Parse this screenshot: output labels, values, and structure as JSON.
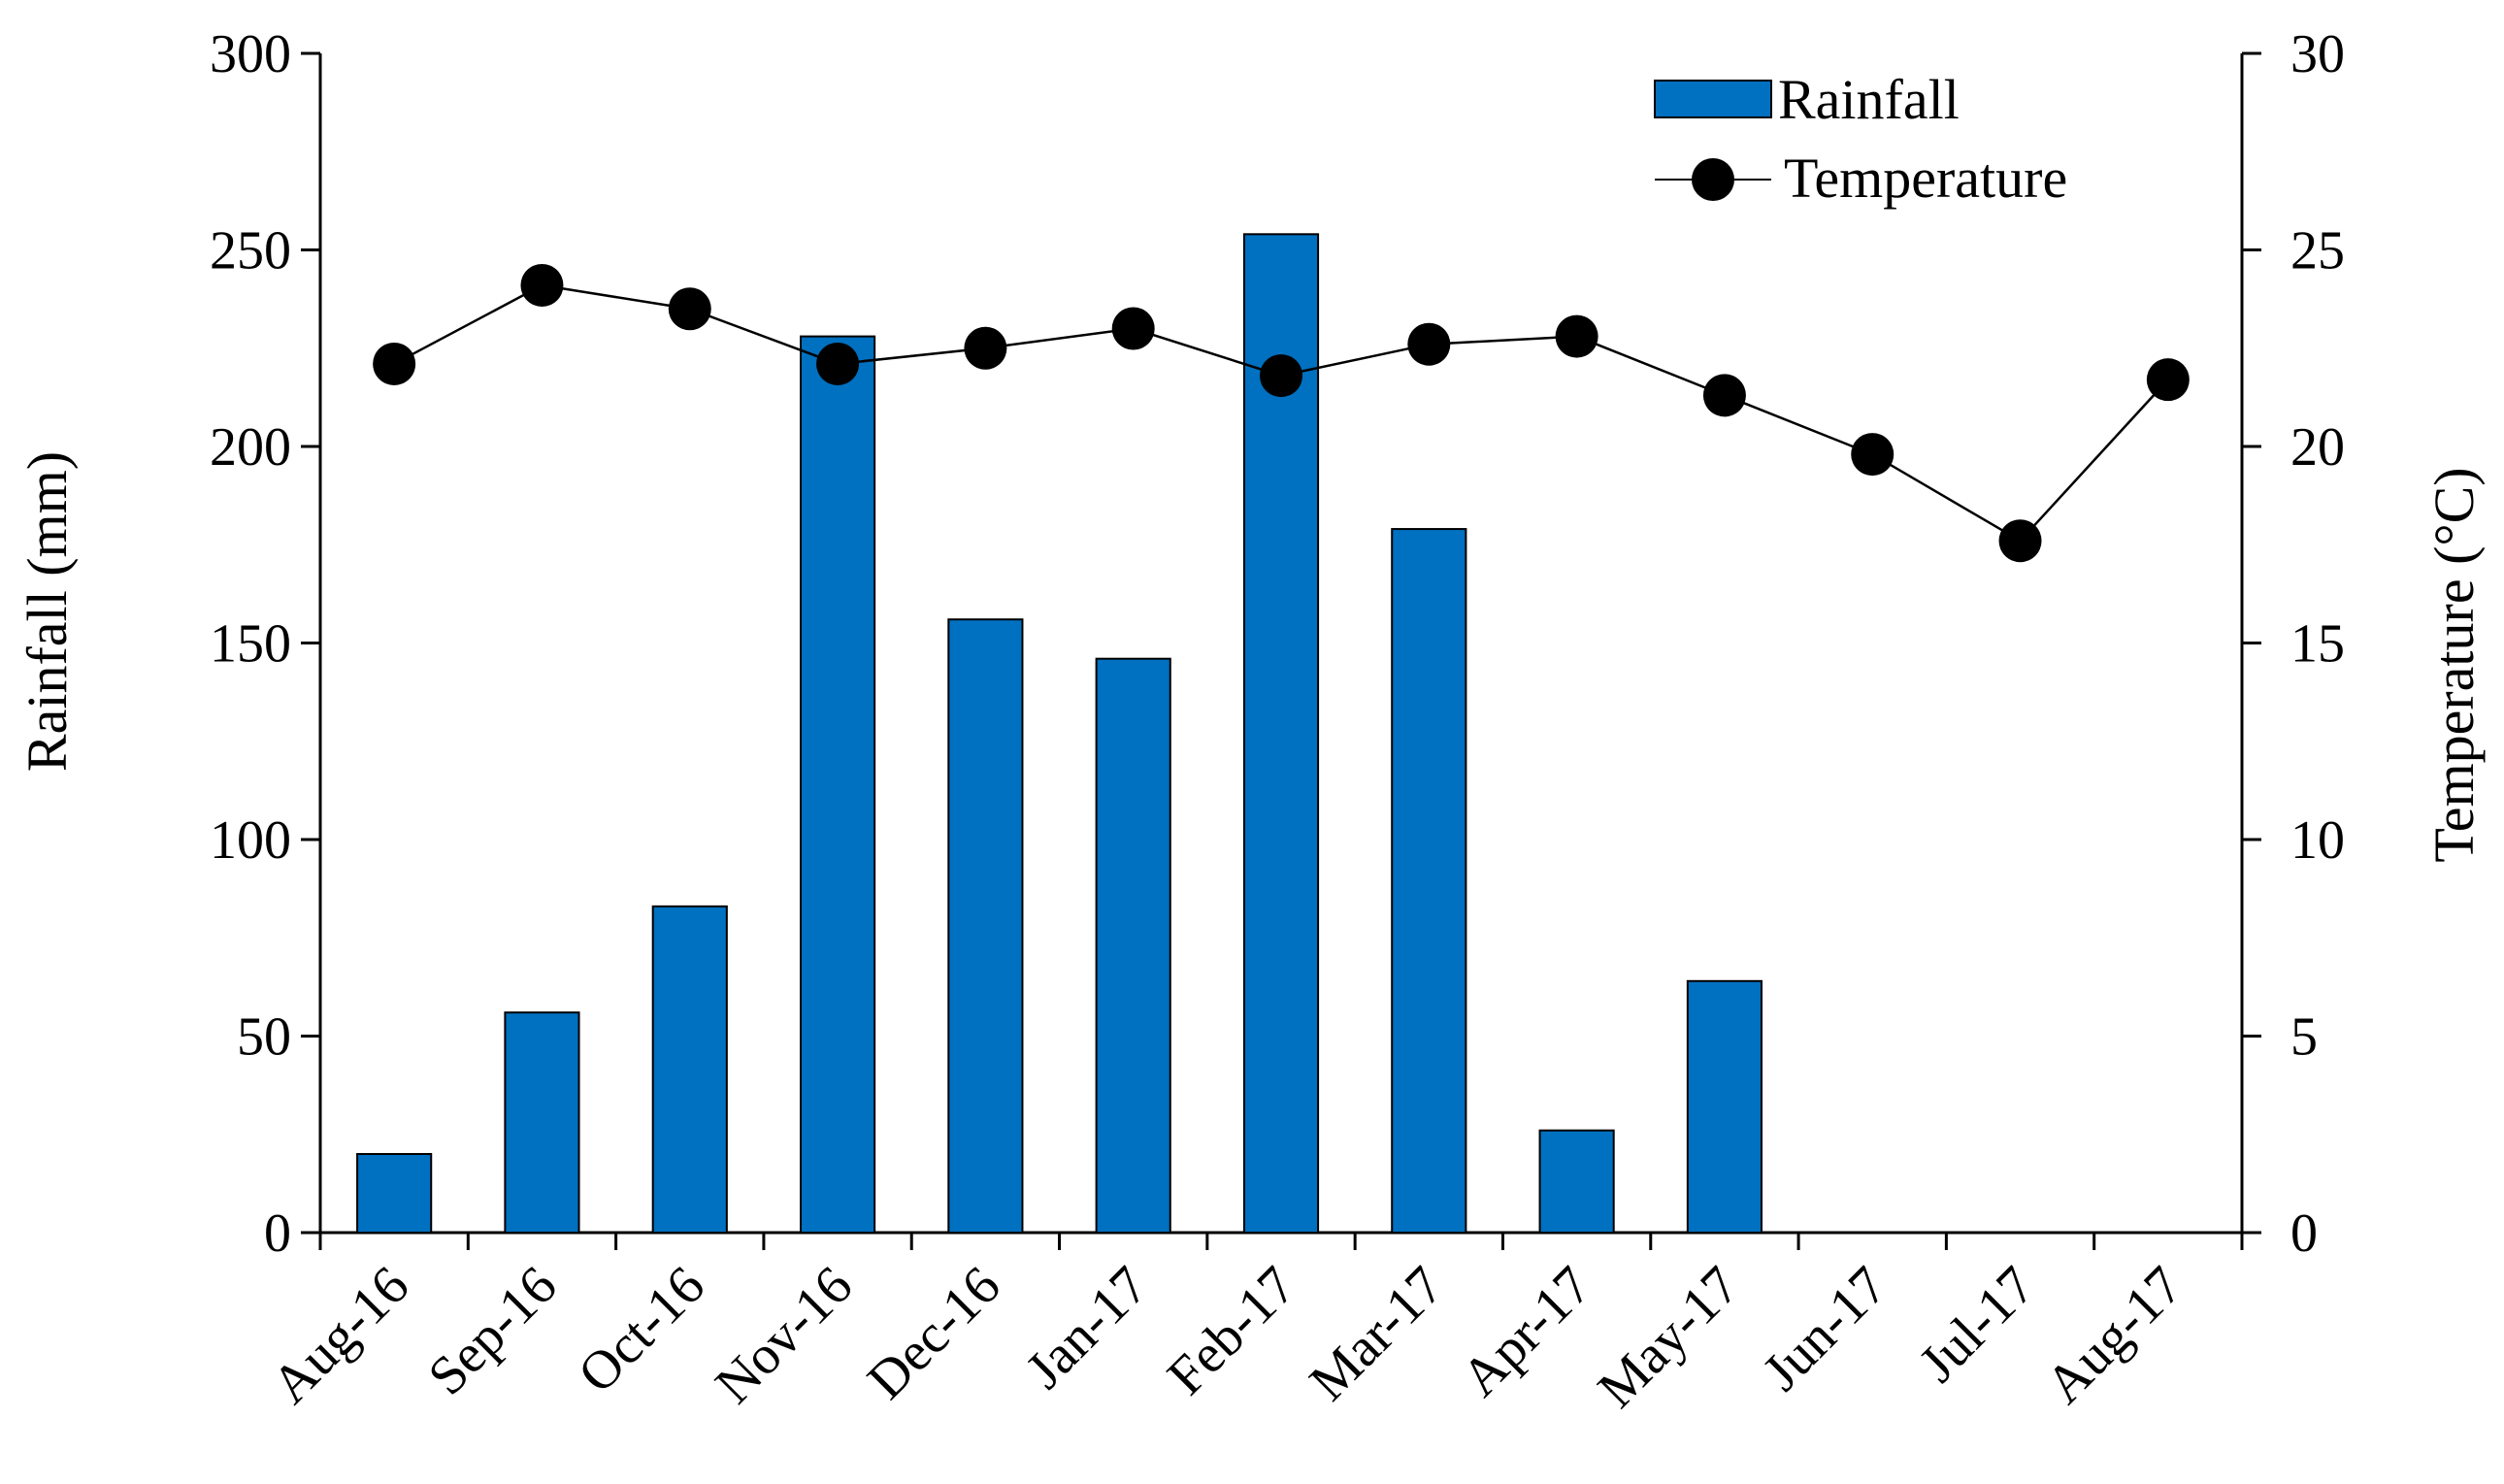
{
  "chart_data": {
    "type": "bar",
    "title": "",
    "categories": [
      "Aug-16",
      "Sep-16",
      "Oct-16",
      "Nov-16",
      "Dec-16",
      "Jan-17",
      "Feb-17",
      "Mar-17",
      "Apr-17",
      "May-17",
      "Jun-17",
      "Jul-17",
      "Aug-17"
    ],
    "series": [
      {
        "name": "Rainfall",
        "type": "bar",
        "axis": "left",
        "color": "#0070C0",
        "values": [
          20,
          56,
          83,
          228,
          156,
          146,
          254,
          179,
          26,
          64,
          0,
          0,
          0
        ]
      },
      {
        "name": "Temperature",
        "type": "line",
        "axis": "right",
        "color": "#000000",
        "values": [
          22.1,
          24.1,
          23.5,
          22.1,
          22.5,
          23.0,
          21.8,
          22.6,
          22.8,
          21.3,
          19.8,
          17.6,
          21.7
        ]
      }
    ],
    "ylabel": "Rainfall (mm)",
    "ylim": [
      0,
      300
    ],
    "yticks": [
      "0",
      "50",
      "100",
      "150",
      "200",
      "250",
      "300"
    ],
    "y2label": "Temperature (°C)",
    "y2lim": [
      0,
      30
    ],
    "y2ticks": [
      "0",
      "5",
      "10",
      "15",
      "20",
      "25",
      "30"
    ],
    "xlabel": "",
    "grid": false,
    "legend": "top-right"
  }
}
